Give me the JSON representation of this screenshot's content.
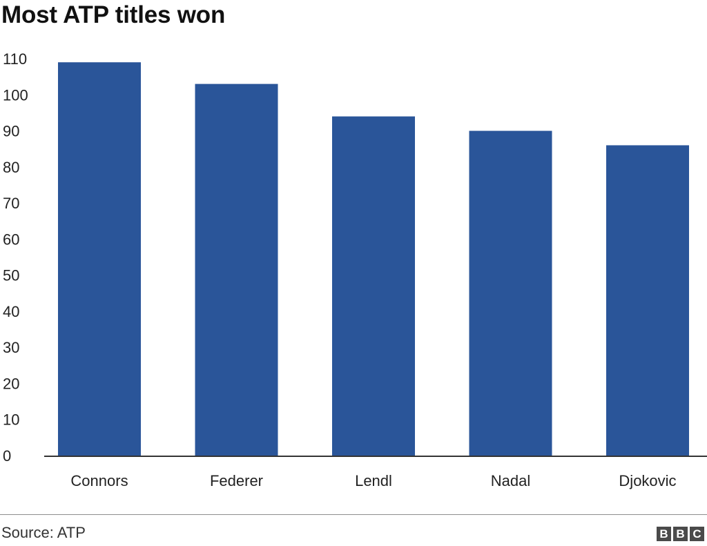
{
  "chart_data": {
    "type": "bar",
    "title": "Most ATP titles won",
    "categories": [
      "Connors",
      "Federer",
      "Lendl",
      "Nadal",
      "Djokovic"
    ],
    "values": [
      109,
      103,
      94,
      90,
      86
    ],
    "xlabel": "",
    "ylabel": "",
    "ylim": [
      0,
      110
    ],
    "yticks": [
      0,
      10,
      20,
      30,
      40,
      50,
      60,
      70,
      80,
      90,
      100,
      110
    ],
    "grid": false,
    "legend": "none",
    "bar_color": "#2a5599",
    "axis_color": "#333333"
  },
  "footer": {
    "source": "Source: ATP",
    "logo_letters": [
      "B",
      "B",
      "C"
    ]
  }
}
